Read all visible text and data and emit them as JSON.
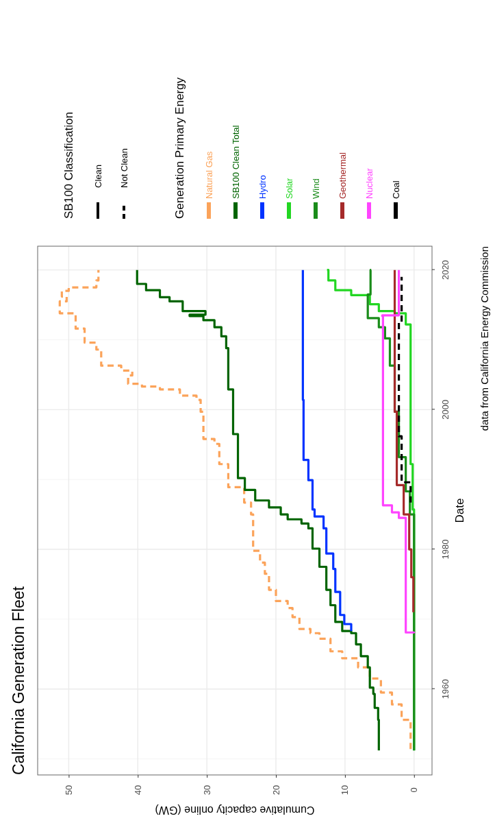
{
  "chart_data": {
    "type": "step",
    "title": "California  Generation Fleet",
    "orientation": "horizontal",
    "xlabel": "Cumulative capacity online (GW)",
    "ylabel": "Date",
    "legend_title": "Generation Primary Energy",
    "legend": "right",
    "grid": true,
    "xlim": [
      54.5,
      -2.6
    ],
    "xticks": [
      50,
      40,
      30,
      20,
      10,
      0
    ],
    "ylim": [
      1947.7,
      2023.4
    ],
    "yticks": [
      1960,
      1980,
      2000,
      2020
    ],
    "annotations": [
      "data from California Energy Commission",
      "SB100 Classification",
      "Clean",
      "Not Clean"
    ],
    "series": [
      {
        "name": "Natural Gas",
        "color": "#fba35a",
        "line_style": "dashed",
        "x": [
          1951.4,
          1953.7,
          1955.6,
          1957.8,
          1959.5,
          1961.5,
          1963.1,
          1964.4,
          1965.4,
          1966.4,
          1967.2,
          1968,
          1968.6,
          1970.3,
          1971.6,
          1972.6,
          1974.2,
          1976.5,
          1978.1,
          1979.8,
          1985,
          1986.7,
          1988.9,
          1992.2,
          1995.1,
          1995.8,
          1999.7,
          2001.4,
          2002,
          2002.9,
          2003.3,
          2003.7,
          2004.9,
          2005.6,
          2006.3,
          2008.6,
          2009.6,
          2011.6,
          2013.8,
          2015.5,
          2016.2,
          2017,
          2017.5,
          2018.5,
          2020
        ],
        "values": [
          0.5,
          0.5,
          1.8,
          3.2,
          4.8,
          6.4,
          8.1,
          10.4,
          12.1,
          12.1,
          13.7,
          15,
          16.6,
          17.6,
          18.3,
          20,
          21,
          21.6,
          22.3,
          23.3,
          23.6,
          24.6,
          26.9,
          28.2,
          28.9,
          30.5,
          30.9,
          31.5,
          33.9,
          36.8,
          39.4,
          41.4,
          40.8,
          42.4,
          45.3,
          46,
          47.7,
          49,
          51.3,
          50.3,
          51,
          50,
          46,
          45.7,
          45.7
        ]
      },
      {
        "name": "SB100 Clean Total",
        "color": "#006400",
        "line_style": "solid",
        "x": [
          1951.2,
          1955.6,
          1957.3,
          1959.3,
          1960.2,
          1963.1,
          1964.7,
          1966.4,
          1968,
          1968.3,
          1969.6,
          1972,
          1974.2,
          1977.5,
          1980.1,
          1983,
          1983.7,
          1984.3,
          1985,
          1986,
          1987,
          1988.5,
          1990.2,
          1996.5,
          2002.9,
          2008.8,
          2010.5,
          2011.8,
          2012.8,
          2013.4,
          2013.6,
          2014.1,
          2015.5,
          2016.1,
          2017.1,
          2018,
          2020
        ],
        "values": [
          5.1,
          5.2,
          5.7,
          5.9,
          6.4,
          6.7,
          7.7,
          8.4,
          9.1,
          10.4,
          11.4,
          12.1,
          12.7,
          13.7,
          14.7,
          15.3,
          16.3,
          18.3,
          19.3,
          21,
          23,
          24.5,
          25.5,
          26.2,
          26.9,
          27.2,
          27.9,
          28.9,
          30.5,
          32.5,
          30.2,
          33.5,
          35.4,
          36.8,
          38.8,
          40.1,
          40.1
        ]
      },
      {
        "name": "Hydro",
        "color": "#0033ff",
        "line_style": "solid",
        "x": [
          1968.3,
          1969.3,
          1970.6,
          1973.9,
          1977.2,
          1979.4,
          1983,
          1984.7,
          1985.7,
          1989.9,
          1992.8,
          2001.4,
          2020
        ],
        "values": [
          9.1,
          10.1,
          10.7,
          11.4,
          11.7,
          12.7,
          13.1,
          14.4,
          14.7,
          15.3,
          16,
          16.1,
          16.1
        ]
      },
      {
        "name": "Solar",
        "color": "#22d622",
        "line_style": "solid",
        "x": [
          1951.2,
          1984,
          1985.7,
          1992.2,
          2009.6,
          2012.2,
          2013.8,
          2014.1,
          2015.1,
          2016.4,
          2017.1,
          2018.5,
          2020
        ],
        "values": [
          0,
          0,
          0.2,
          0.5,
          0.5,
          1.2,
          2.8,
          5.1,
          6.4,
          9.1,
          11.4,
          12.4,
          12.6
        ]
      },
      {
        "name": "Wind",
        "color": "#1a8c1a",
        "line_style": "solid",
        "x": [
          1951.2,
          1982,
          1985,
          1988.3,
          1993.2,
          1999.7,
          2006.3,
          2010.2,
          2011.8,
          2013.1,
          2015.7,
          2016.5,
          2020
        ],
        "values": [
          0,
          0,
          0.6,
          1.2,
          2.2,
          2.8,
          3.5,
          4.2,
          5.1,
          6.7,
          6.7,
          6.3,
          6.2
        ]
      },
      {
        "name": "Geothermal",
        "color": "#a52a2a",
        "line_style": "solid",
        "x": [
          1971,
          1976,
          1980,
          1985,
          1989.2,
          1999.7,
          2020
        ],
        "values": [
          0.1,
          0.4,
          0.7,
          1.5,
          2.5,
          2.8,
          2.8
        ]
      },
      {
        "name": "Nuclear",
        "color": "#ff44ff",
        "line_style": "solid",
        "x": [
          1968,
          1968.1,
          1984.4,
          1984.5,
          1985.3,
          1986.3,
          2013.4,
          2013.5,
          2020
        ],
        "values": [
          0,
          1.2,
          1.2,
          2.2,
          3.2,
          4.5,
          4.6,
          2.2,
          2.2
        ]
      },
      {
        "name": "Coal",
        "color": "#000000",
        "line_style": "dashed",
        "x": [
          1986.7,
          1989.6,
          1996.2,
          2011.5,
          2012.5,
          2019
        ],
        "values": [
          0.5,
          1.8,
          2.2,
          2.2,
          1.8,
          1.8
        ]
      }
    ]
  }
}
